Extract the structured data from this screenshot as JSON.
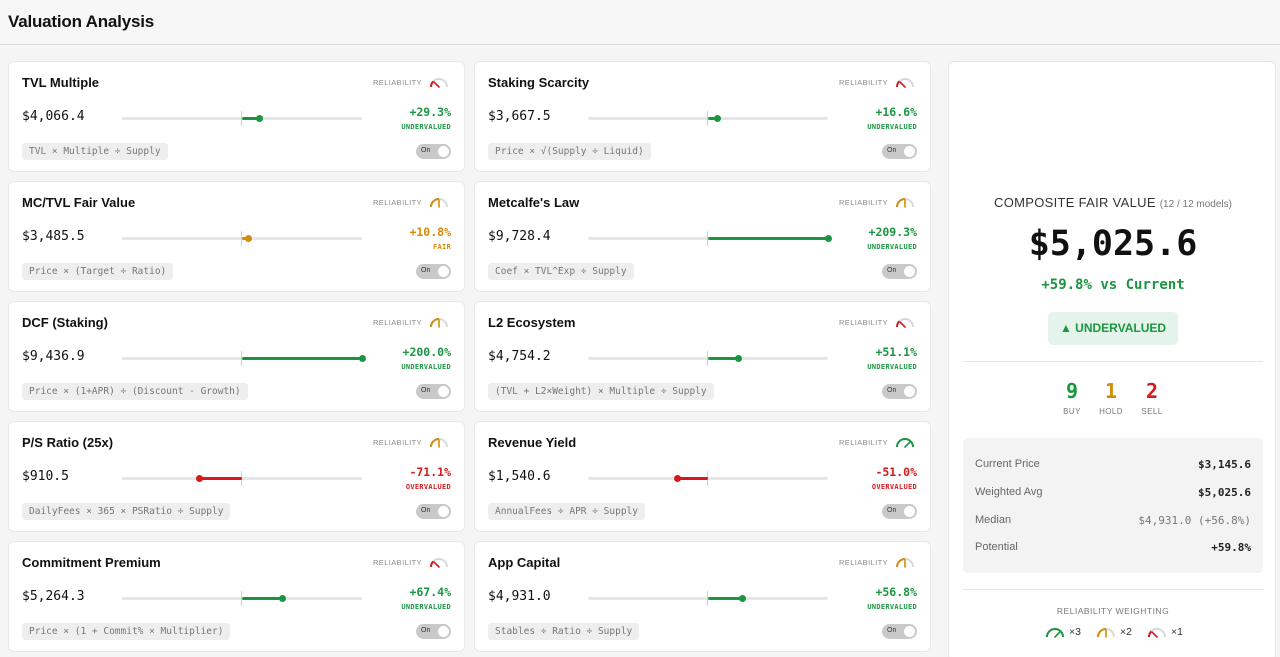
{
  "page": {
    "title": "Valuation Analysis"
  },
  "labels": {
    "reliability": "RELIABILITY",
    "toggle_on": "On"
  },
  "colors": {
    "green": "#1a9641",
    "orange": "#d68a0c",
    "red": "#d7191c",
    "gauge_track": "#d9d9d9"
  },
  "models": [
    {
      "name": "TVL Multiple",
      "value": "$4,066.4",
      "change": "+29.3%",
      "change_pct": 29.3,
      "status": "UNDERVALUED",
      "tone": "green",
      "reliability": "low",
      "formula": "TVL × Multiple ÷ Supply"
    },
    {
      "name": "Staking Scarcity",
      "value": "$3,667.5",
      "change": "+16.6%",
      "change_pct": 16.6,
      "status": "UNDERVALUED",
      "tone": "green",
      "reliability": "low",
      "formula": "Price × √(Supply ÷ Liquid)"
    },
    {
      "name": "MC/TVL Fair Value",
      "value": "$3,485.5",
      "change": "+10.8%",
      "change_pct": 10.8,
      "status": "FAIR",
      "tone": "orange",
      "reliability": "medium",
      "formula": "Price × (Target ÷ Ratio)"
    },
    {
      "name": "Metcalfe's Law",
      "value": "$9,728.4",
      "change": "+209.3%",
      "change_pct": 209.3,
      "status": "UNDERVALUED",
      "tone": "green",
      "reliability": "medium",
      "formula": "Coef × TVL^Exp ÷ Supply"
    },
    {
      "name": "DCF (Staking)",
      "value": "$9,436.9",
      "change": "+200.0%",
      "change_pct": 200.0,
      "status": "UNDERVALUED",
      "tone": "green",
      "reliability": "medium",
      "formula": "Price × (1+APR) ÷ (Discount - Growth)"
    },
    {
      "name": "L2 Ecosystem",
      "value": "$4,754.2",
      "change": "+51.1%",
      "change_pct": 51.1,
      "status": "UNDERVALUED",
      "tone": "green",
      "reliability": "low",
      "formula": "(TVL + L2×Weight) × Multiple ÷ Supply"
    },
    {
      "name": "P/S Ratio (25x)",
      "value": "$910.5",
      "change": "-71.1%",
      "change_pct": -71.1,
      "status": "OVERVALUED",
      "tone": "red",
      "reliability": "medium",
      "formula": "DailyFees × 365 × PSRatio ÷ Supply"
    },
    {
      "name": "Revenue Yield",
      "value": "$1,540.6",
      "change": "-51.0%",
      "change_pct": -51.0,
      "status": "OVERVALUED",
      "tone": "red",
      "reliability": "high",
      "formula": "AnnualFees ÷ APR ÷ Supply"
    },
    {
      "name": "Commitment Premium",
      "value": "$5,264.3",
      "change": "+67.4%",
      "change_pct": 67.4,
      "status": "UNDERVALUED",
      "tone": "green",
      "reliability": "low",
      "formula": "Price × (1 + Commit% × Multiplier)"
    },
    {
      "name": "App Capital",
      "value": "$4,931.0",
      "change": "+56.8%",
      "change_pct": 56.8,
      "status": "UNDERVALUED",
      "tone": "green",
      "reliability": "medium",
      "formula": "Stables ÷ Ratio ÷ Supply"
    }
  ],
  "composite": {
    "title": "COMPOSITE FAIR VALUE",
    "models_count": "(12 / 12 models)",
    "value": "$5,025.6",
    "change": "+59.8% vs Current",
    "badge": "▲ UNDERVALUED",
    "votes": [
      {
        "count": "9",
        "label": "BUY",
        "tone": "green"
      },
      {
        "count": "1",
        "label": "HOLD",
        "tone": "orange"
      },
      {
        "count": "2",
        "label": "SELL",
        "tone": "red"
      }
    ],
    "stats": [
      {
        "label": "Current Price",
        "value": "$3,145.6",
        "style": "bold"
      },
      {
        "label": "Weighted Avg",
        "value": "$5,025.6",
        "style": "bold"
      },
      {
        "label": "Median",
        "value": "$4,931.0 (+56.8%)",
        "style": "muted"
      },
      {
        "label": "Potential",
        "value": "+59.8%",
        "style": "green"
      }
    ],
    "weighting": {
      "title": "RELIABILITY WEIGHTING",
      "items": [
        {
          "level": "high",
          "label": "×3"
        },
        {
          "level": "medium",
          "label": "×2"
        },
        {
          "level": "low",
          "label": "×1"
        }
      ]
    }
  }
}
